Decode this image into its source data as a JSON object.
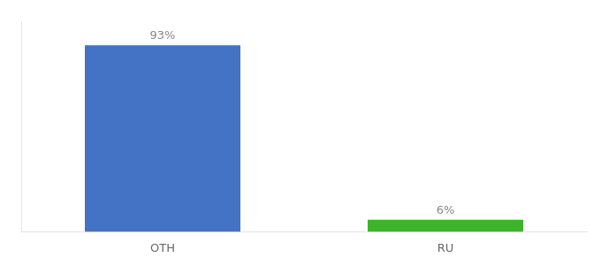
{
  "chart_data": {
    "type": "bar",
    "categories": [
      "OTH",
      "RU"
    ],
    "values": [
      93,
      6
    ],
    "value_labels": [
      "93%",
      "6%"
    ],
    "colors": [
      "#4472c4",
      "#3cb529"
    ],
    "ylim": [
      0,
      105
    ],
    "data_labels": true,
    "tick_labels": "x",
    "grid": false
  }
}
